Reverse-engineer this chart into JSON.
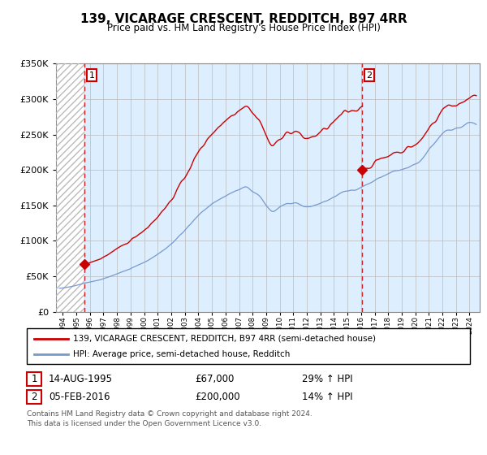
{
  "title": "139, VICARAGE CRESCENT, REDDITCH, B97 4RR",
  "subtitle": "Price paid vs. HM Land Registry's House Price Index (HPI)",
  "sale1_date": "14-AUG-1995",
  "sale1_price": 67000,
  "sale1_year": 1995.619,
  "sale2_date": "05-FEB-2016",
  "sale2_price": 200000,
  "sale2_year": 2016.093,
  "legend_line1": "139, VICARAGE CRESCENT, REDDITCH, B97 4RR (semi-detached house)",
  "legend_line2": "HPI: Average price, semi-detached house, Redditch",
  "footer": "Contains HM Land Registry data © Crown copyright and database right 2024.\nThis data is licensed under the Open Government Licence v3.0.",
  "xmin": 1993.5,
  "xmax": 2024.75,
  "ymin": 0,
  "ymax": 350000,
  "red_color": "#cc0000",
  "blue_color": "#7799cc",
  "bg_color": "#ddeeff",
  "grid_color": "#bbbbbb"
}
